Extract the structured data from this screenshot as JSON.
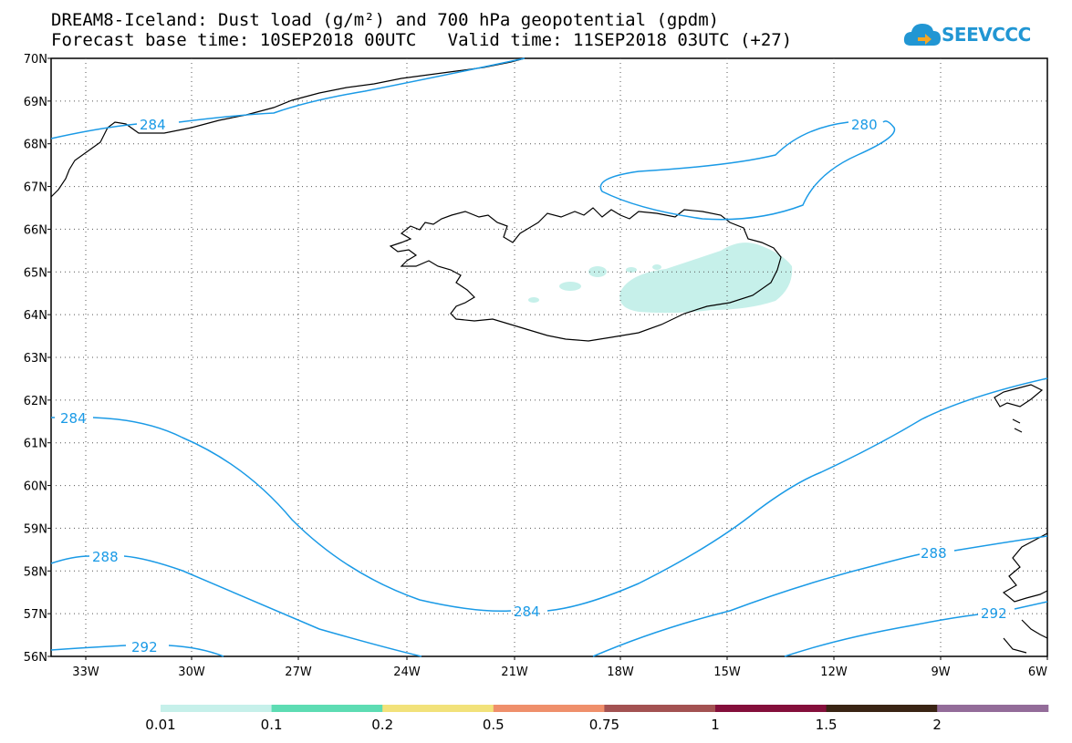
{
  "header": {
    "title_line1": "DREAM8-Iceland: Dust load (g/m²) and 700 hPa geopotential (gpdm)",
    "title_line2": "Forecast base time: 10SEP2018 00UTC   Valid time: 11SEP2018 03UTC (+27)"
  },
  "logo": {
    "text": "SEEVCCC",
    "icon": "cloud-logo-icon"
  },
  "axes": {
    "lat_labels": [
      "70N",
      "69N",
      "68N",
      "67N",
      "66N",
      "65N",
      "64N",
      "63N",
      "62N",
      "61N",
      "60N",
      "59N",
      "58N",
      "57N",
      "56N"
    ],
    "lon_labels": [
      "33W",
      "30W",
      "27W",
      "24W",
      "21W",
      "18W",
      "15W",
      "12W",
      "9W",
      "6W"
    ]
  },
  "contours": {
    "color": "#1a9ae6",
    "labels": [
      "284",
      "280",
      "284",
      "288",
      "284",
      "288",
      "292",
      "292"
    ]
  },
  "colorbar": {
    "colors": [
      "#c6f0ea",
      "#5ddcb3",
      "#f2e27a",
      "#ef8f6b",
      "#a35252",
      "#840f3b",
      "#3a2414",
      "#936c99"
    ],
    "labels": [
      "0.01",
      "0.1",
      "0.2",
      "0.5",
      "0.75",
      "1",
      "1.5",
      "2"
    ]
  },
  "dust_color": "#c6f0ea"
}
